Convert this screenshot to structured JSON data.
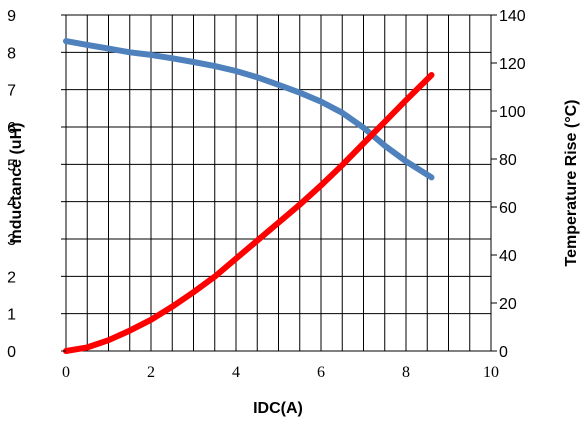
{
  "chart_data": {
    "type": "line",
    "title": "",
    "xlabel": "IDC(A)",
    "ylabel_left": "Inductance (uH)",
    "ylabel_right": "Temperature Rise (°C)",
    "xlim": [
      0,
      10
    ],
    "ylim_left": [
      0,
      9
    ],
    "ylim_right": [
      0,
      140
    ],
    "x_ticks": [
      0,
      2,
      4,
      6,
      8,
      10
    ],
    "y_ticks_left": [
      0,
      1,
      2,
      3,
      4,
      5,
      6,
      7,
      8,
      9
    ],
    "y_ticks_right": [
      0,
      20,
      40,
      60,
      80,
      100,
      120,
      140
    ],
    "grid": true,
    "x_minor_step": 0.5,
    "colors": {
      "inductance": "#4F81BD",
      "temperature": "#FF0000",
      "grid": "#000000"
    },
    "series": [
      {
        "axis": "left",
        "x": [
          0,
          0.5,
          1,
          1.5,
          2,
          2.5,
          3,
          3.5,
          4,
          4.5,
          5,
          5.5,
          6,
          6.5,
          7,
          7.5,
          8,
          8.6
        ],
        "values": [
          8.3,
          8.2,
          8.1,
          8.0,
          7.93,
          7.84,
          7.74,
          7.63,
          7.5,
          7.33,
          7.13,
          6.92,
          6.68,
          6.38,
          5.98,
          5.5,
          5.08,
          4.65
        ]
      },
      {
        "axis": "right",
        "x": [
          0,
          0.5,
          1,
          1.5,
          2,
          2.5,
          3,
          3.5,
          4,
          4.5,
          5,
          5.5,
          6,
          6.5,
          7,
          7.5,
          8,
          8.6
        ],
        "values": [
          0,
          1.5,
          4.5,
          8.5,
          13,
          18.5,
          24.5,
          31,
          38.5,
          46,
          53.5,
          61,
          69,
          77.5,
          86.5,
          95.5,
          104.5,
          115
        ]
      }
    ]
  }
}
